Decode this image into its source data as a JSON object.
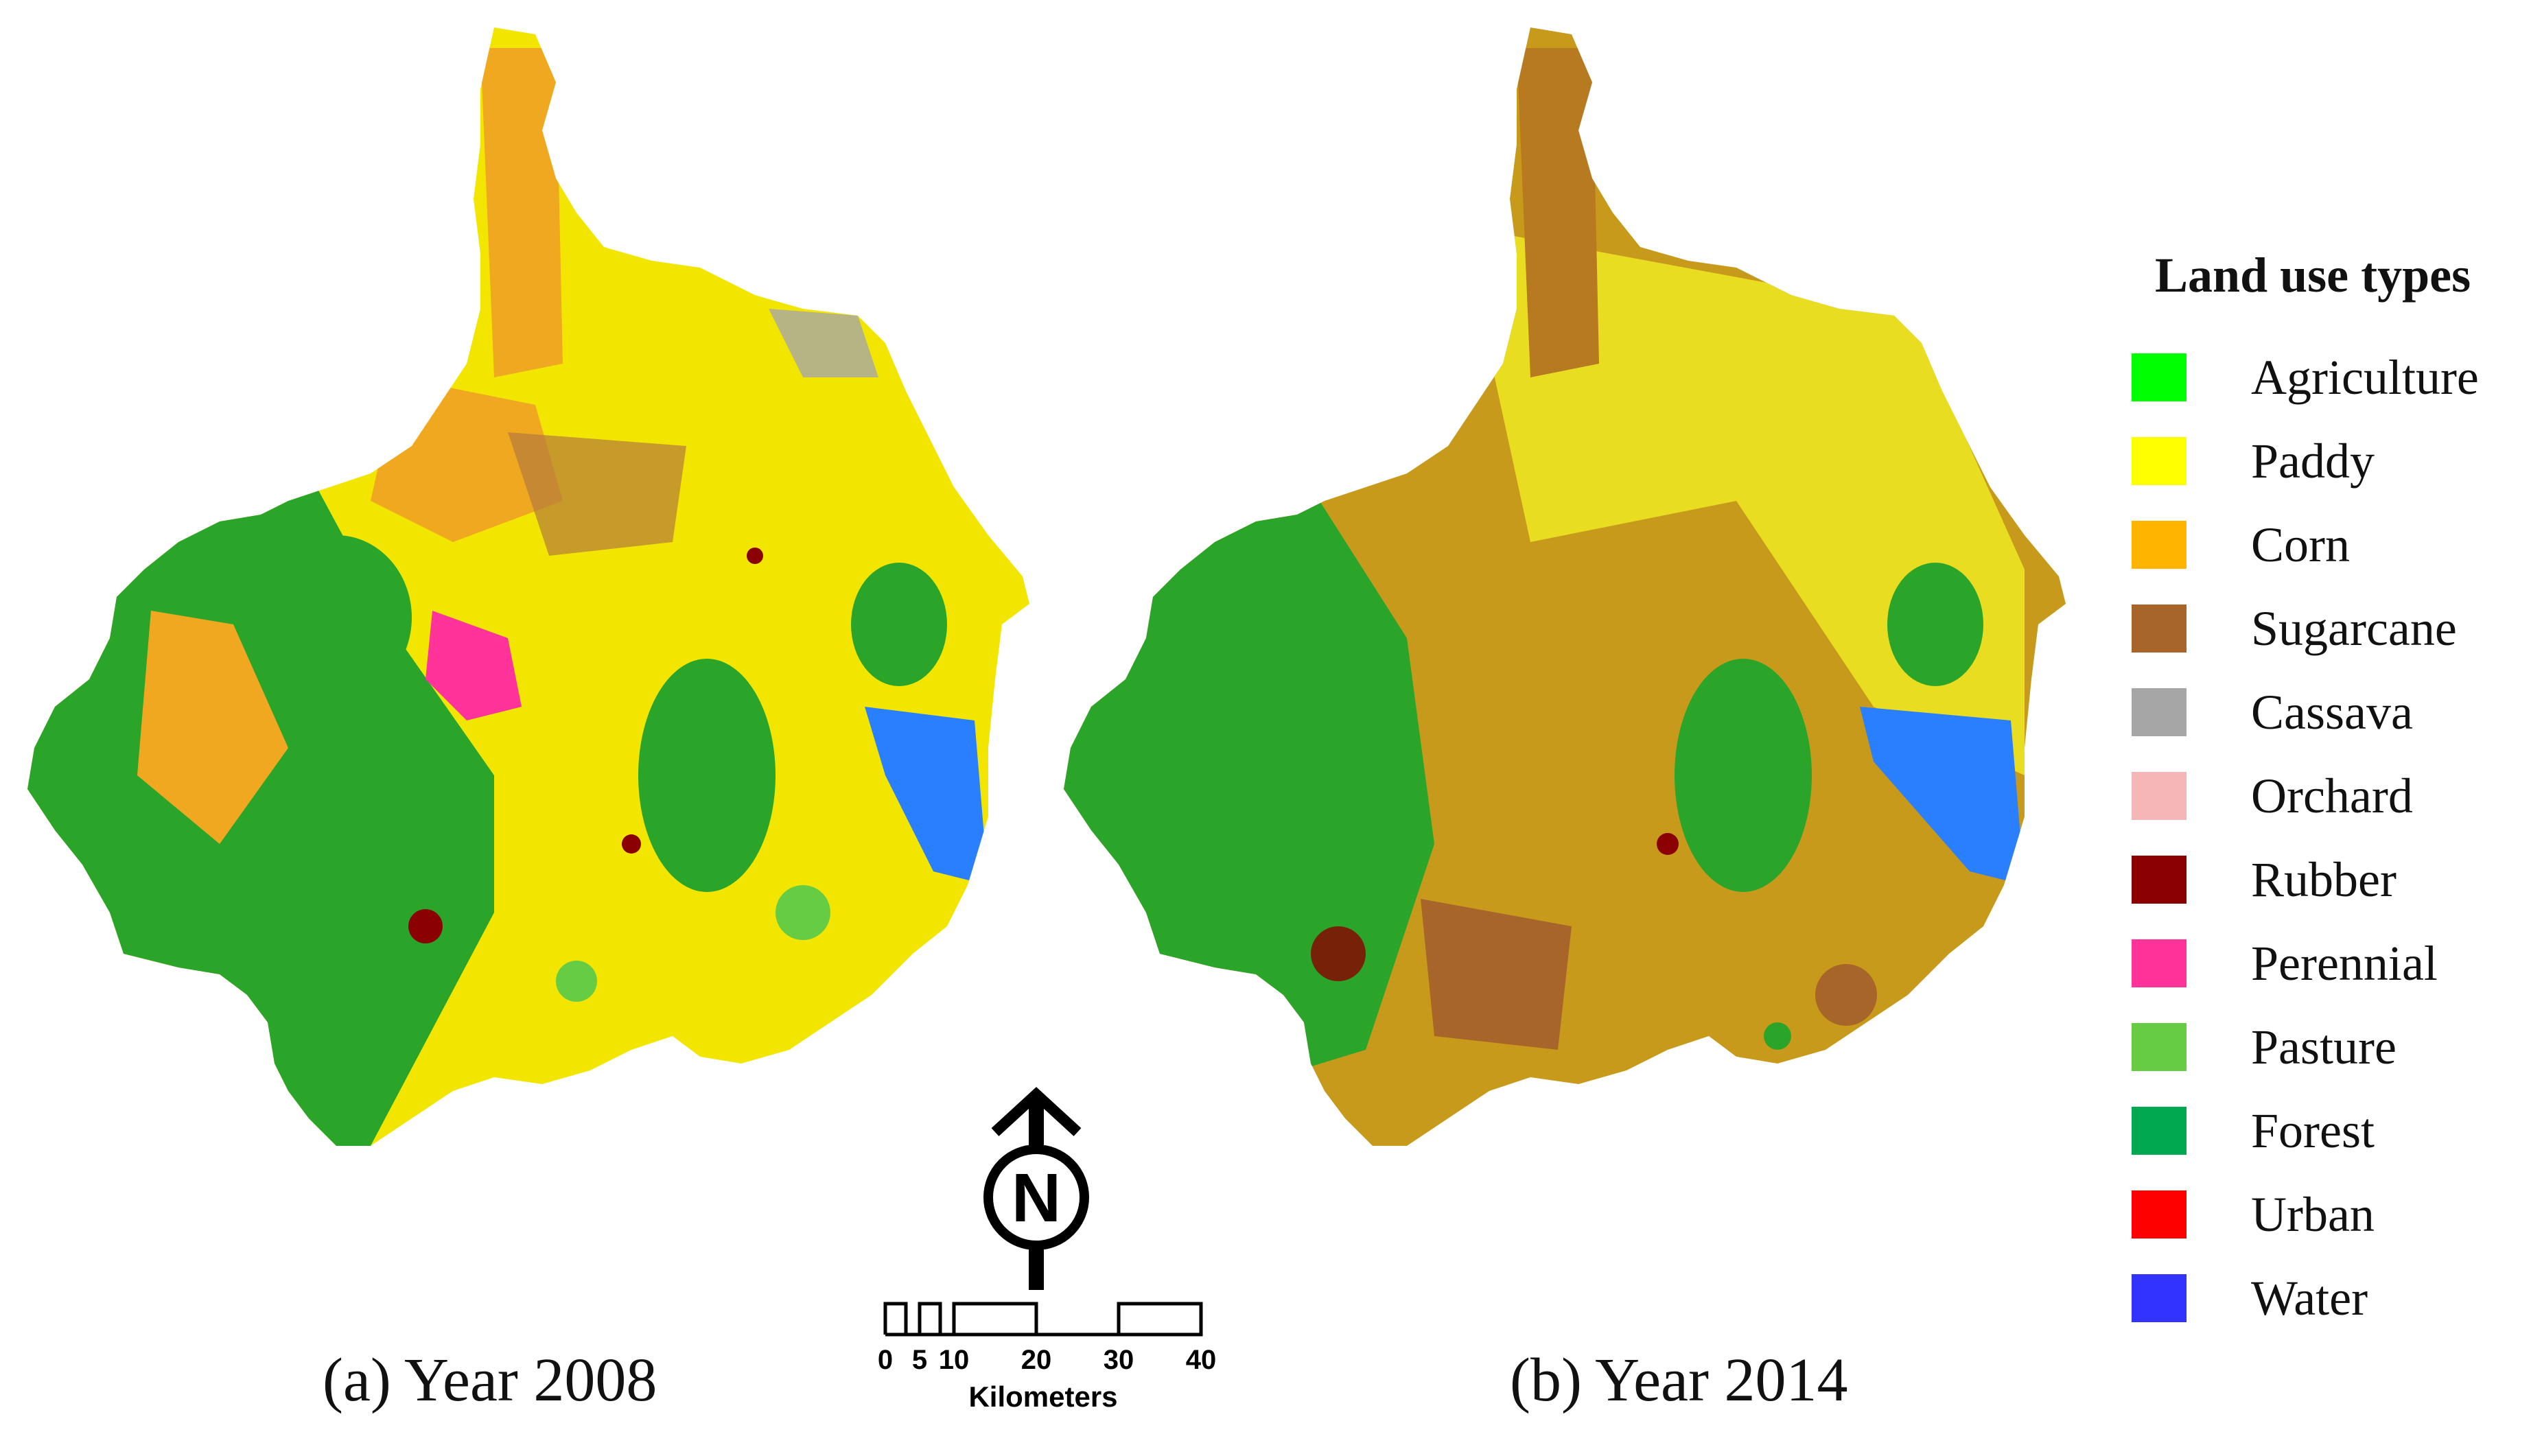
{
  "maps": [
    {
      "caption": "(a) Year 2008"
    },
    {
      "caption": "(b) Year 2014"
    }
  ],
  "north_arrow": {
    "letter": "N"
  },
  "scale_bar": {
    "ticks": [
      "0",
      "5",
      "10",
      "20",
      "30",
      "40"
    ],
    "unit": "Kilometers"
  },
  "legend": {
    "title": "Land use types",
    "items": [
      {
        "label": "Agriculture",
        "color": "#00ff00"
      },
      {
        "label": "Paddy",
        "color": "#ffff00"
      },
      {
        "label": "Corn",
        "color": "#ffb400"
      },
      {
        "label": "Sugarcane",
        "color": "#a8652a"
      },
      {
        "label": "Cassava",
        "color": "#a6a6a6"
      },
      {
        "label": "Orchard",
        "color": "#f4b6b6"
      },
      {
        "label": "Rubber",
        "color": "#8b0000"
      },
      {
        "label": "Perennial",
        "color": "#ff3399"
      },
      {
        "label": "Pasture",
        "color": "#66cc44"
      },
      {
        "label": "Forest",
        "color": "#00a84f"
      },
      {
        "label": "Urban",
        "color": "#ff0000"
      },
      {
        "label": "Water",
        "color": "#3333ff"
      }
    ]
  }
}
